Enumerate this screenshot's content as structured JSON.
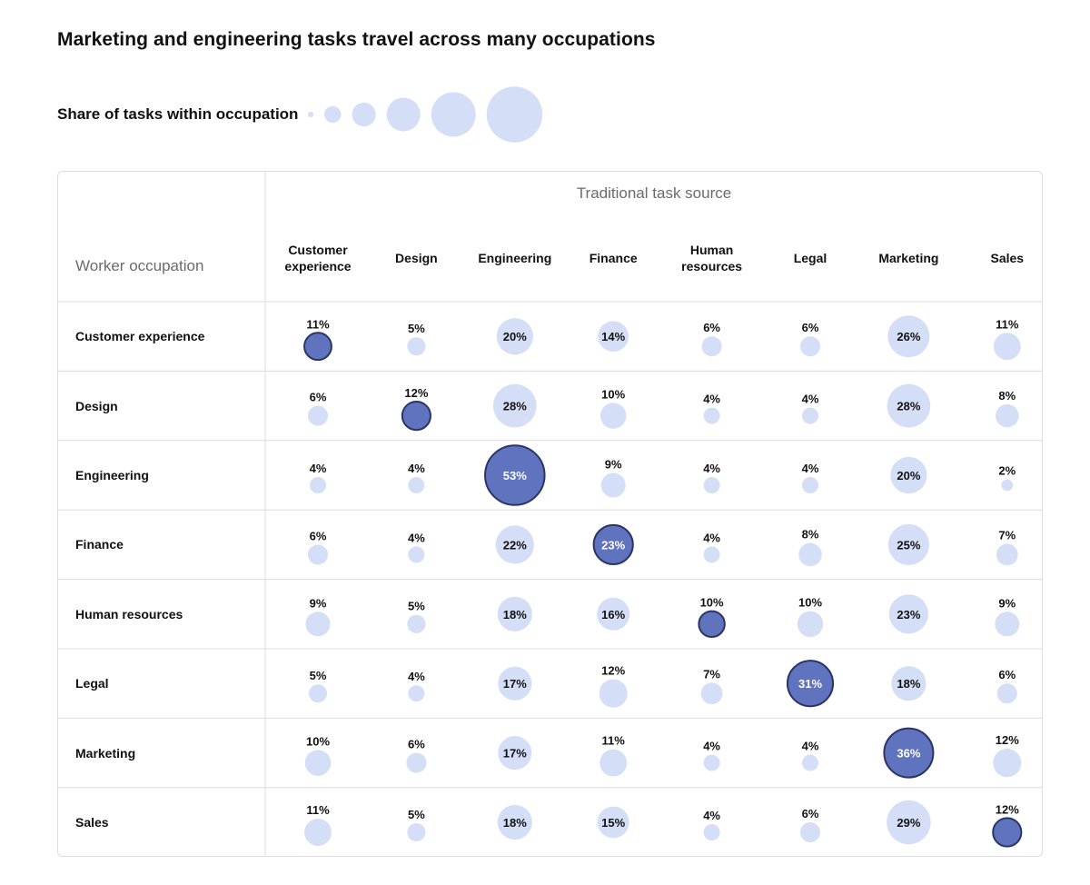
{
  "title": "Marketing and engineering tasks travel across many occupations",
  "legend": {
    "label": "Share of tasks within occupation",
    "sample_values": [
      1,
      5,
      10,
      20,
      35,
      55
    ]
  },
  "colors": {
    "bubble_light": "#d4def7",
    "bubble_diag": "#6073bf",
    "bubble_diag_stroke": "#2a3566",
    "grid": "#dcdcdc"
  },
  "chart_data": {
    "type": "bubble-matrix",
    "title": "Marketing and engineering tasks travel across many occupations",
    "row_axis_label": "Worker occupation",
    "col_axis_label": "Traditional task source",
    "columns": [
      {
        "line1": "Customer",
        "line2": "experience"
      },
      {
        "line1": "Design",
        "line2": ""
      },
      {
        "line1": "Engineering",
        "line2": ""
      },
      {
        "line1": "Finance",
        "line2": ""
      },
      {
        "line1": "Human",
        "line2": "resources"
      },
      {
        "line1": "Legal",
        "line2": ""
      },
      {
        "line1": "Marketing",
        "line2": ""
      },
      {
        "line1": "Sales",
        "line2": ""
      }
    ],
    "rows": [
      "Customer experience",
      "Design",
      "Engineering",
      "Finance",
      "Human resources",
      "Legal",
      "Marketing",
      "Sales"
    ],
    "values": [
      [
        11,
        5,
        20,
        14,
        6,
        6,
        26,
        11
      ],
      [
        6,
        12,
        28,
        10,
        4,
        4,
        28,
        8
      ],
      [
        4,
        4,
        53,
        9,
        4,
        4,
        20,
        2
      ],
      [
        6,
        4,
        22,
        23,
        4,
        8,
        25,
        7
      ],
      [
        9,
        5,
        18,
        16,
        10,
        10,
        23,
        9
      ],
      [
        5,
        4,
        17,
        12,
        7,
        31,
        18,
        6
      ],
      [
        10,
        6,
        17,
        11,
        4,
        4,
        36,
        12
      ],
      [
        11,
        5,
        18,
        15,
        4,
        6,
        29,
        12
      ]
    ],
    "unit": "%"
  }
}
